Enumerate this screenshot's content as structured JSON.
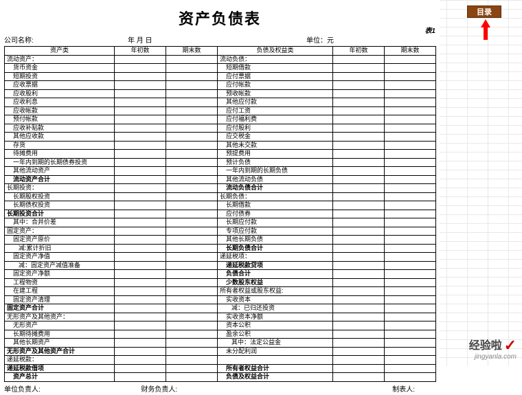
{
  "title": "资产负债表",
  "meta": {
    "company_label": "公司名称:",
    "date_label": "年  月  日",
    "unit_label": "单位：元",
    "table_tag": "表1"
  },
  "mulu": {
    "label": "目录"
  },
  "headers": {
    "asset": "资产类",
    "beg": "年初数",
    "end": "期末数",
    "liab": "负债及权益类",
    "beg2": "年初数",
    "end2": "期末数"
  },
  "rows": [
    {
      "a": "流动资产：",
      "ac": "",
      "l": "流动负债：",
      "lc": ""
    },
    {
      "a": "货币资金",
      "ac": "indent1",
      "l": "短期借款",
      "lc": "indent1"
    },
    {
      "a": "短期投资",
      "ac": "indent1",
      "l": "应付票据",
      "lc": "indent1"
    },
    {
      "a": "应收票据",
      "ac": "indent1",
      "l": "应付帐款",
      "lc": "indent1"
    },
    {
      "a": "应收股利",
      "ac": "indent1",
      "l": "预收帐款",
      "lc": "indent1"
    },
    {
      "a": "应收利息",
      "ac": "indent1",
      "l": "其他应付款",
      "lc": "indent1"
    },
    {
      "a": "应收帐款",
      "ac": "indent1",
      "l": "应付工资",
      "lc": "indent1"
    },
    {
      "a": "预付帐款",
      "ac": "indent1",
      "l": "应付福利费",
      "lc": "indent1"
    },
    {
      "a": "应收补贴款",
      "ac": "indent1",
      "l": "应付股利",
      "lc": "indent1"
    },
    {
      "a": "其他应收款",
      "ac": "indent1",
      "l": "应交税金",
      "lc": "indent1"
    },
    {
      "a": "存货",
      "ac": "indent1",
      "l": "其他未交款",
      "lc": "indent1"
    },
    {
      "a": "待摊费用",
      "ac": "indent1",
      "l": "预提费用",
      "lc": "indent1"
    },
    {
      "a": "一年内到期的长期债券投资",
      "ac": "indent1",
      "l": "预计负债",
      "lc": "indent1"
    },
    {
      "a": "其他流动资产",
      "ac": "indent1",
      "l": "一年内到期的长期负债",
      "lc": "indent1"
    },
    {
      "a": "流动资产合计",
      "ac": "bold indent1",
      "l": "其他流动负债",
      "lc": "indent1"
    },
    {
      "a": "长期投资：",
      "ac": "",
      "l": "流动负债合计",
      "lc": "bold indent1"
    },
    {
      "a": "长期股权投资",
      "ac": "indent1",
      "l": "长期负债：",
      "lc": ""
    },
    {
      "a": "长期债权投资",
      "ac": "indent1",
      "l": "长期借款",
      "lc": "indent1"
    },
    {
      "a": "长期投资合计",
      "ac": "bold",
      "l": "应付债券",
      "lc": "indent1"
    },
    {
      "a": "其中：合并价差",
      "ac": "indent1",
      "l": "长期应付款",
      "lc": "indent1"
    },
    {
      "a": "固定资产：",
      "ac": "",
      "l": "专项应付款",
      "lc": "indent1"
    },
    {
      "a": "固定资产原价",
      "ac": "indent1",
      "l": "其他长期负债",
      "lc": "indent1"
    },
    {
      "a": "减:累计折旧",
      "ac": "indent2",
      "l": "长期负债合计",
      "lc": "bold indent1"
    },
    {
      "a": "固定资产净值",
      "ac": "indent1",
      "l": "递延税项：",
      "lc": ""
    },
    {
      "a": "减：固定资产减值准备",
      "ac": "indent2",
      "l": "递延税款贷项",
      "lc": "bold indent1"
    },
    {
      "a": "固定资产净额",
      "ac": "indent1",
      "l": "负债合计",
      "lc": "bold indent1"
    },
    {
      "a": "工程物资",
      "ac": "indent1",
      "l": "少数股东权益",
      "lc": "bold indent1"
    },
    {
      "a": "在建工程",
      "ac": "indent1",
      "l": "所有者权益或股东权益:",
      "lc": ""
    },
    {
      "a": "固定资产清理",
      "ac": "indent1",
      "l": "实收资本",
      "lc": "indent1"
    },
    {
      "a": "固定资产合计",
      "ac": "bold",
      "l": "减：已归还投资",
      "lc": "indent2"
    },
    {
      "a": "无形资产及其他资产：",
      "ac": "",
      "l": "实收资本净额",
      "lc": "indent1"
    },
    {
      "a": "无形资产",
      "ac": "indent1",
      "l": "资本公积",
      "lc": "indent1"
    },
    {
      "a": "长期待摊费用",
      "ac": "indent1",
      "l": "盈余公积",
      "lc": "indent1"
    },
    {
      "a": "其他长期资产",
      "ac": "indent1",
      "l": "其中：法定公益金",
      "lc": "indent2"
    },
    {
      "a": "无形资产及其他资产合计",
      "ac": "bold",
      "l": "未分配利润",
      "lc": "indent1"
    },
    {
      "a": "递延税款：",
      "ac": "",
      "l": "",
      "lc": ""
    },
    {
      "a": "递延税款借项",
      "ac": "bold",
      "l": "所有者权益合计",
      "lc": "bold indent1"
    },
    {
      "a": "资产总计",
      "ac": "bold indent1",
      "l": "负债及权益合计",
      "lc": "bold indent1"
    }
  ],
  "footer": {
    "preparer": "单位负责人:",
    "finance": "财务负责人:",
    "maker": "制表人:"
  },
  "watermark": {
    "brand": "经验啦",
    "domain": "jingyanla.com"
  },
  "colors": {
    "mulu_bg": "#8b4513",
    "arrow": "#ff0000",
    "check": "#d40000"
  }
}
